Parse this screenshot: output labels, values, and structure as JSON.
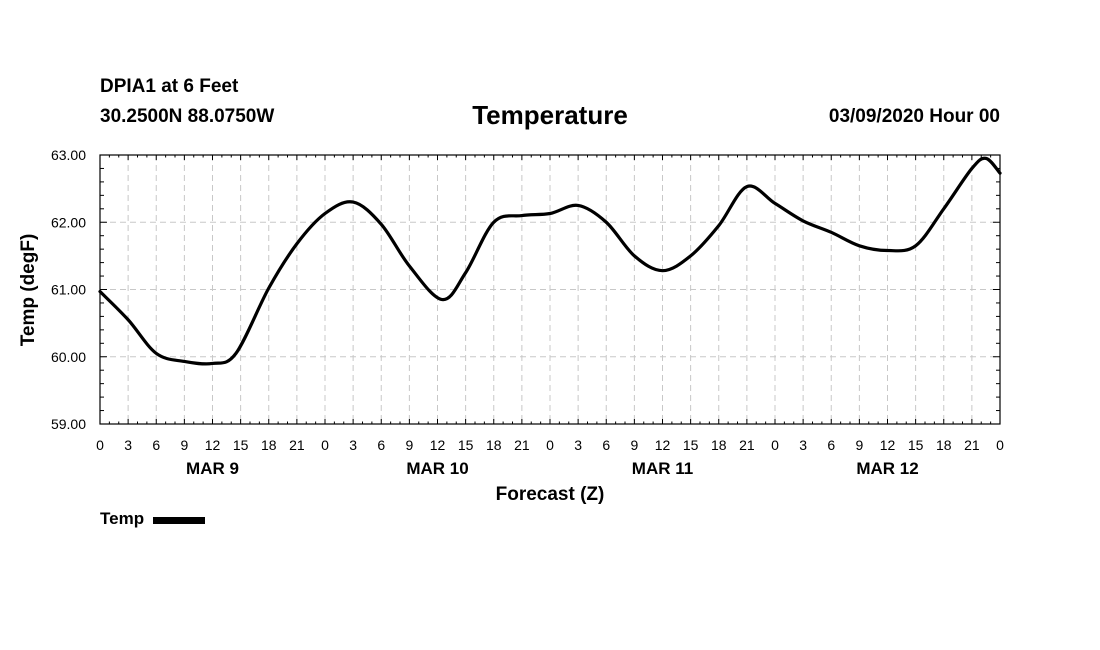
{
  "header": {
    "station": "DPIA1 at 6 Feet",
    "coords": "30.2500N 88.0750W",
    "title": "Temperature",
    "datetime": "03/09/2020 Hour 00"
  },
  "legend": {
    "label": "Temp"
  },
  "colors": {
    "line": "#000000",
    "grid": "#c8c8c8",
    "axis": "#000000"
  },
  "chart_data": {
    "type": "line",
    "title": "Temperature",
    "xlabel": "Forecast (Z)",
    "ylabel": "Temp (degF)",
    "ylim": [
      59,
      63
    ],
    "xlim": [
      0,
      96
    ],
    "grid": true,
    "legend_position": "bottom-left",
    "y_ticks": [
      59,
      60,
      61,
      62,
      63
    ],
    "y_tick_labels": [
      "59.00",
      "60.00",
      "61.00",
      "62.00",
      "63.00"
    ],
    "x_ticks": [
      0,
      3,
      6,
      9,
      12,
      15,
      18,
      21,
      24,
      27,
      30,
      33,
      36,
      39,
      42,
      45,
      48,
      51,
      54,
      57,
      60,
      63,
      66,
      69,
      72,
      75,
      78,
      81,
      84,
      87,
      90,
      93,
      96
    ],
    "x_tick_labels": [
      "0",
      "3",
      "6",
      "9",
      "12",
      "15",
      "18",
      "21",
      "0",
      "3",
      "6",
      "9",
      "12",
      "15",
      "18",
      "21",
      "0",
      "3",
      "6",
      "9",
      "12",
      "15",
      "18",
      "21",
      "0",
      "3",
      "6",
      "9",
      "12",
      "15",
      "18",
      "21",
      "0"
    ],
    "day_labels": [
      {
        "label": "MAR 9",
        "hour": 12
      },
      {
        "label": "MAR 10",
        "hour": 36
      },
      {
        "label": "MAR 11",
        "hour": 60
      },
      {
        "label": "MAR 12",
        "hour": 84
      }
    ],
    "series": [
      {
        "name": "Temp",
        "x": [
          0,
          3,
          6,
          9,
          12,
          14.5,
          18,
          21,
          24,
          27,
          30,
          33,
          36.5,
          39,
          42,
          45,
          48,
          51,
          54,
          57,
          60,
          63,
          66,
          69,
          72,
          75,
          78,
          81,
          84,
          87,
          90,
          93,
          94.5,
          96
        ],
        "values": [
          60.97,
          60.55,
          60.05,
          59.93,
          59.9,
          60.05,
          61.02,
          61.68,
          62.13,
          62.3,
          61.97,
          61.35,
          60.85,
          61.25,
          62.0,
          62.1,
          62.13,
          62.25,
          62.0,
          61.5,
          61.28,
          61.5,
          61.95,
          62.53,
          62.28,
          62.02,
          61.85,
          61.65,
          61.58,
          61.65,
          62.2,
          62.8,
          62.95,
          62.73
        ]
      }
    ]
  }
}
